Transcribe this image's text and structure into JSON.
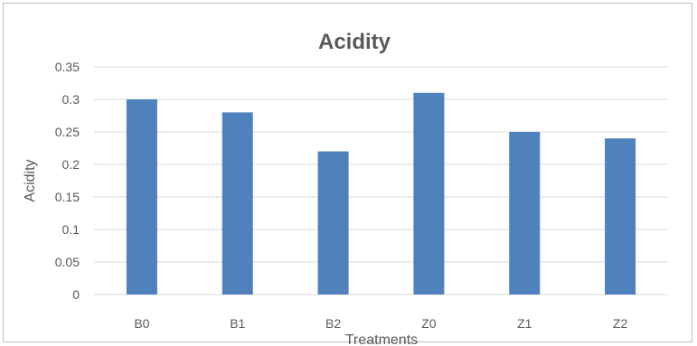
{
  "chart_data": {
    "type": "bar",
    "title": "Acidity",
    "xlabel": "Treatments",
    "ylabel": "Acidity",
    "categories": [
      "B0",
      "B1",
      "B2",
      "Z0",
      "Z1",
      "Z2"
    ],
    "values": [
      0.3,
      0.28,
      0.22,
      0.31,
      0.25,
      0.24
    ],
    "ylim": [
      0,
      0.35
    ],
    "yticks": [
      "0",
      "0.05",
      "0.1",
      "0.15",
      "0.2",
      "0.25",
      "0.3",
      "0.35"
    ],
    "grid": true,
    "legend": "none",
    "colors": {
      "bar": "#4f81bd",
      "grid": "#d9d9d9",
      "text": "#595959"
    }
  }
}
